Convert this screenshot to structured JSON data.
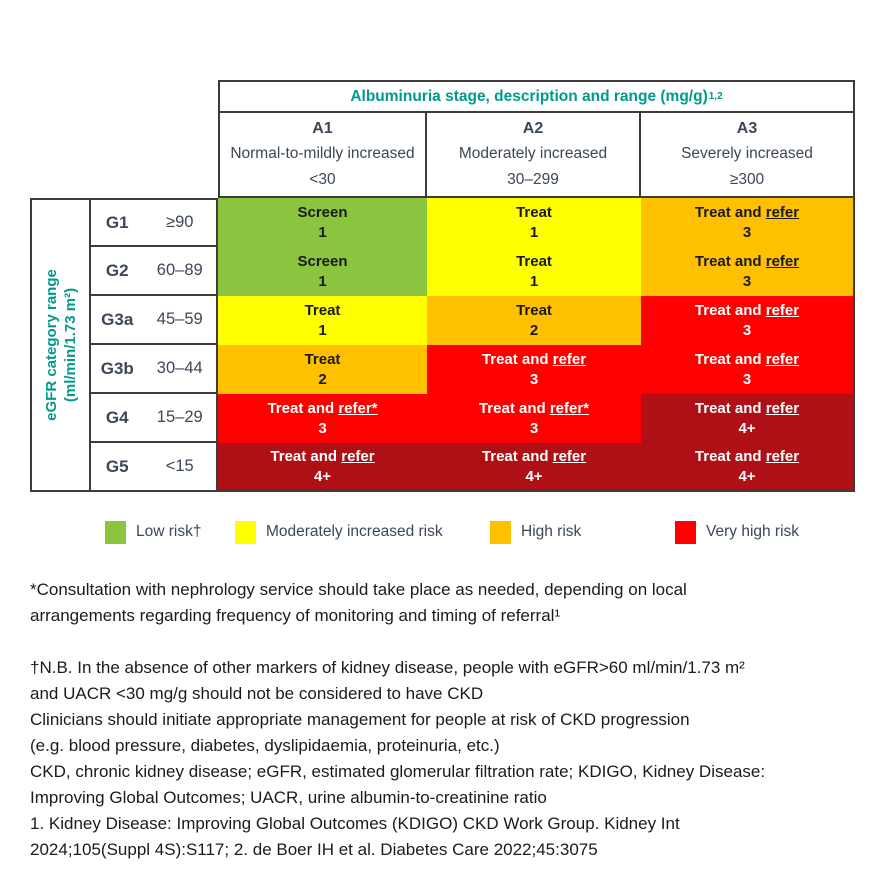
{
  "colors": {
    "teal": "#009A8D",
    "header_text": "#3C4757",
    "border": "#403b3b",
    "low_risk_green": "#8BC53F",
    "moderate_risk_yellow": "#FFFF00",
    "high_risk_amber": "#FFC000",
    "very_high_risk_red": "#FF0000",
    "very_high_risk_dark_red": "#AF1015"
  },
  "chart_data": {
    "type": "heatmap",
    "col_axis_title": "Albuminuria stage, description and range (mg/g)",
    "col_axis_title_sup": "1,2",
    "row_axis_title_line1": "eGFR category range",
    "row_axis_title_line2": "(ml/min/1.73 m²)",
    "legend_position": "bottom",
    "columns": [
      {
        "code": "A1",
        "description": "Normal-to-mildly increased",
        "range": "<30"
      },
      {
        "code": "A2",
        "description": "Moderately increased",
        "range": "30–299"
      },
      {
        "code": "A3",
        "description": "Severely increased",
        "range": "≥300"
      }
    ],
    "rows": [
      {
        "code": "G1",
        "range": "≥90"
      },
      {
        "code": "G2",
        "range": "60–89"
      },
      {
        "code": "G3a",
        "range": "45–59"
      },
      {
        "code": "G3b",
        "range": "30–44"
      },
      {
        "code": "G4",
        "range": "15–29"
      },
      {
        "code": "G5",
        "range": "<15"
      }
    ],
    "cells": [
      [
        {
          "pre": "Screen",
          "refer": "",
          "num": "1",
          "risk": "low",
          "bg": "#8BC53F",
          "fg": "#1A1A1A"
        },
        {
          "pre": "Treat",
          "refer": "",
          "num": "1",
          "risk": "moderately-increased",
          "bg": "#FFFF00",
          "fg": "#1A1A1A"
        },
        {
          "pre": "Treat and ",
          "refer": "refer",
          "num": "3",
          "risk": "high",
          "bg": "#FFC000",
          "fg": "#1A1A1A"
        }
      ],
      [
        {
          "pre": "Screen",
          "refer": "",
          "num": "1",
          "risk": "low",
          "bg": "#8BC53F",
          "fg": "#1A1A1A"
        },
        {
          "pre": "Treat",
          "refer": "",
          "num": "1",
          "risk": "moderately-increased",
          "bg": "#FFFF00",
          "fg": "#1A1A1A"
        },
        {
          "pre": "Treat and ",
          "refer": "refer",
          "num": "3",
          "risk": "high",
          "bg": "#FFC000",
          "fg": "#1A1A1A"
        }
      ],
      [
        {
          "pre": "Treat",
          "refer": "",
          "num": "1",
          "risk": "moderately-increased",
          "bg": "#FFFF00",
          "fg": "#1A1A1A"
        },
        {
          "pre": "Treat",
          "refer": "",
          "num": "2",
          "risk": "high",
          "bg": "#FFC000",
          "fg": "#1A1A1A"
        },
        {
          "pre": "Treat and ",
          "refer": "refer",
          "num": "3",
          "risk": "very-high",
          "bg": "#FF0000",
          "fg": "#FFFFFF"
        }
      ],
      [
        {
          "pre": "Treat",
          "refer": "",
          "num": "2",
          "risk": "high",
          "bg": "#FFC000",
          "fg": "#1A1A1A"
        },
        {
          "pre": "Treat and ",
          "refer": "refer",
          "num": "3",
          "risk": "very-high",
          "bg": "#FF0000",
          "fg": "#FFFFFF"
        },
        {
          "pre": "Treat and ",
          "refer": "refer",
          "num": "3",
          "risk": "very-high",
          "bg": "#FF0000",
          "fg": "#FFFFFF"
        }
      ],
      [
        {
          "pre": "Treat and ",
          "refer": "refer*",
          "num": "3",
          "risk": "very-high",
          "bg": "#FF0000",
          "fg": "#FFFFFF"
        },
        {
          "pre": "Treat and ",
          "refer": "refer*",
          "num": "3",
          "risk": "very-high",
          "bg": "#FF0000",
          "fg": "#FFFFFF"
        },
        {
          "pre": "Treat and ",
          "refer": "refer",
          "num": "4+",
          "risk": "very-high",
          "bg": "#AF1015",
          "fg": "#FFFFFF"
        }
      ],
      [
        {
          "pre": "Treat and ",
          "refer": "refer",
          "num": "4+",
          "risk": "very-high",
          "bg": "#AF1015",
          "fg": "#FFFFFF"
        },
        {
          "pre": "Treat and ",
          "refer": "refer",
          "num": "4+",
          "risk": "very-high",
          "bg": "#AF1015",
          "fg": "#FFFFFF"
        },
        {
          "pre": "Treat and ",
          "refer": "refer",
          "num": "4+",
          "risk": "very-high",
          "bg": "#AF1015",
          "fg": "#FFFFFF"
        }
      ]
    ]
  },
  "legend": {
    "items": [
      {
        "label": "Low risk†",
        "color": "#8BC53F"
      },
      {
        "label": "Moderately increased risk",
        "color": "#FFFF00"
      },
      {
        "label": "High risk",
        "color": "#FFC000"
      },
      {
        "label": "Very high risk",
        "color": "#FF0000"
      }
    ]
  },
  "footnotes": {
    "para1_lines": [
      "*Consultation with nephrology service should take place as needed, depending on local",
      "arrangements regarding frequency of monitoring and timing of referral¹"
    ],
    "para2_lines": [
      "†N.B. In the absence of other markers of kidney disease, people with eGFR>60 ml/min/1.73 m²",
      "and UACR <30 mg/g should not be considered to have CKD",
      "Clinicians should initiate appropriate management for people at risk of CKD progression",
      "(e.g. blood pressure, diabetes, dyslipidaemia, proteinuria, etc.)",
      "CKD, chronic kidney disease; eGFR, estimated glomerular filtration rate; KDIGO, Kidney Disease:",
      "Improving Global Outcomes; UACR, urine albumin-to-creatinine ratio",
      "1. Kidney Disease: Improving Global Outcomes (KDIGO) CKD Work Group. Kidney Int",
      "2024;105(Suppl 4S):S117; 2. de Boer IH et al. Diabetes Care 2022;45:3075"
    ]
  }
}
